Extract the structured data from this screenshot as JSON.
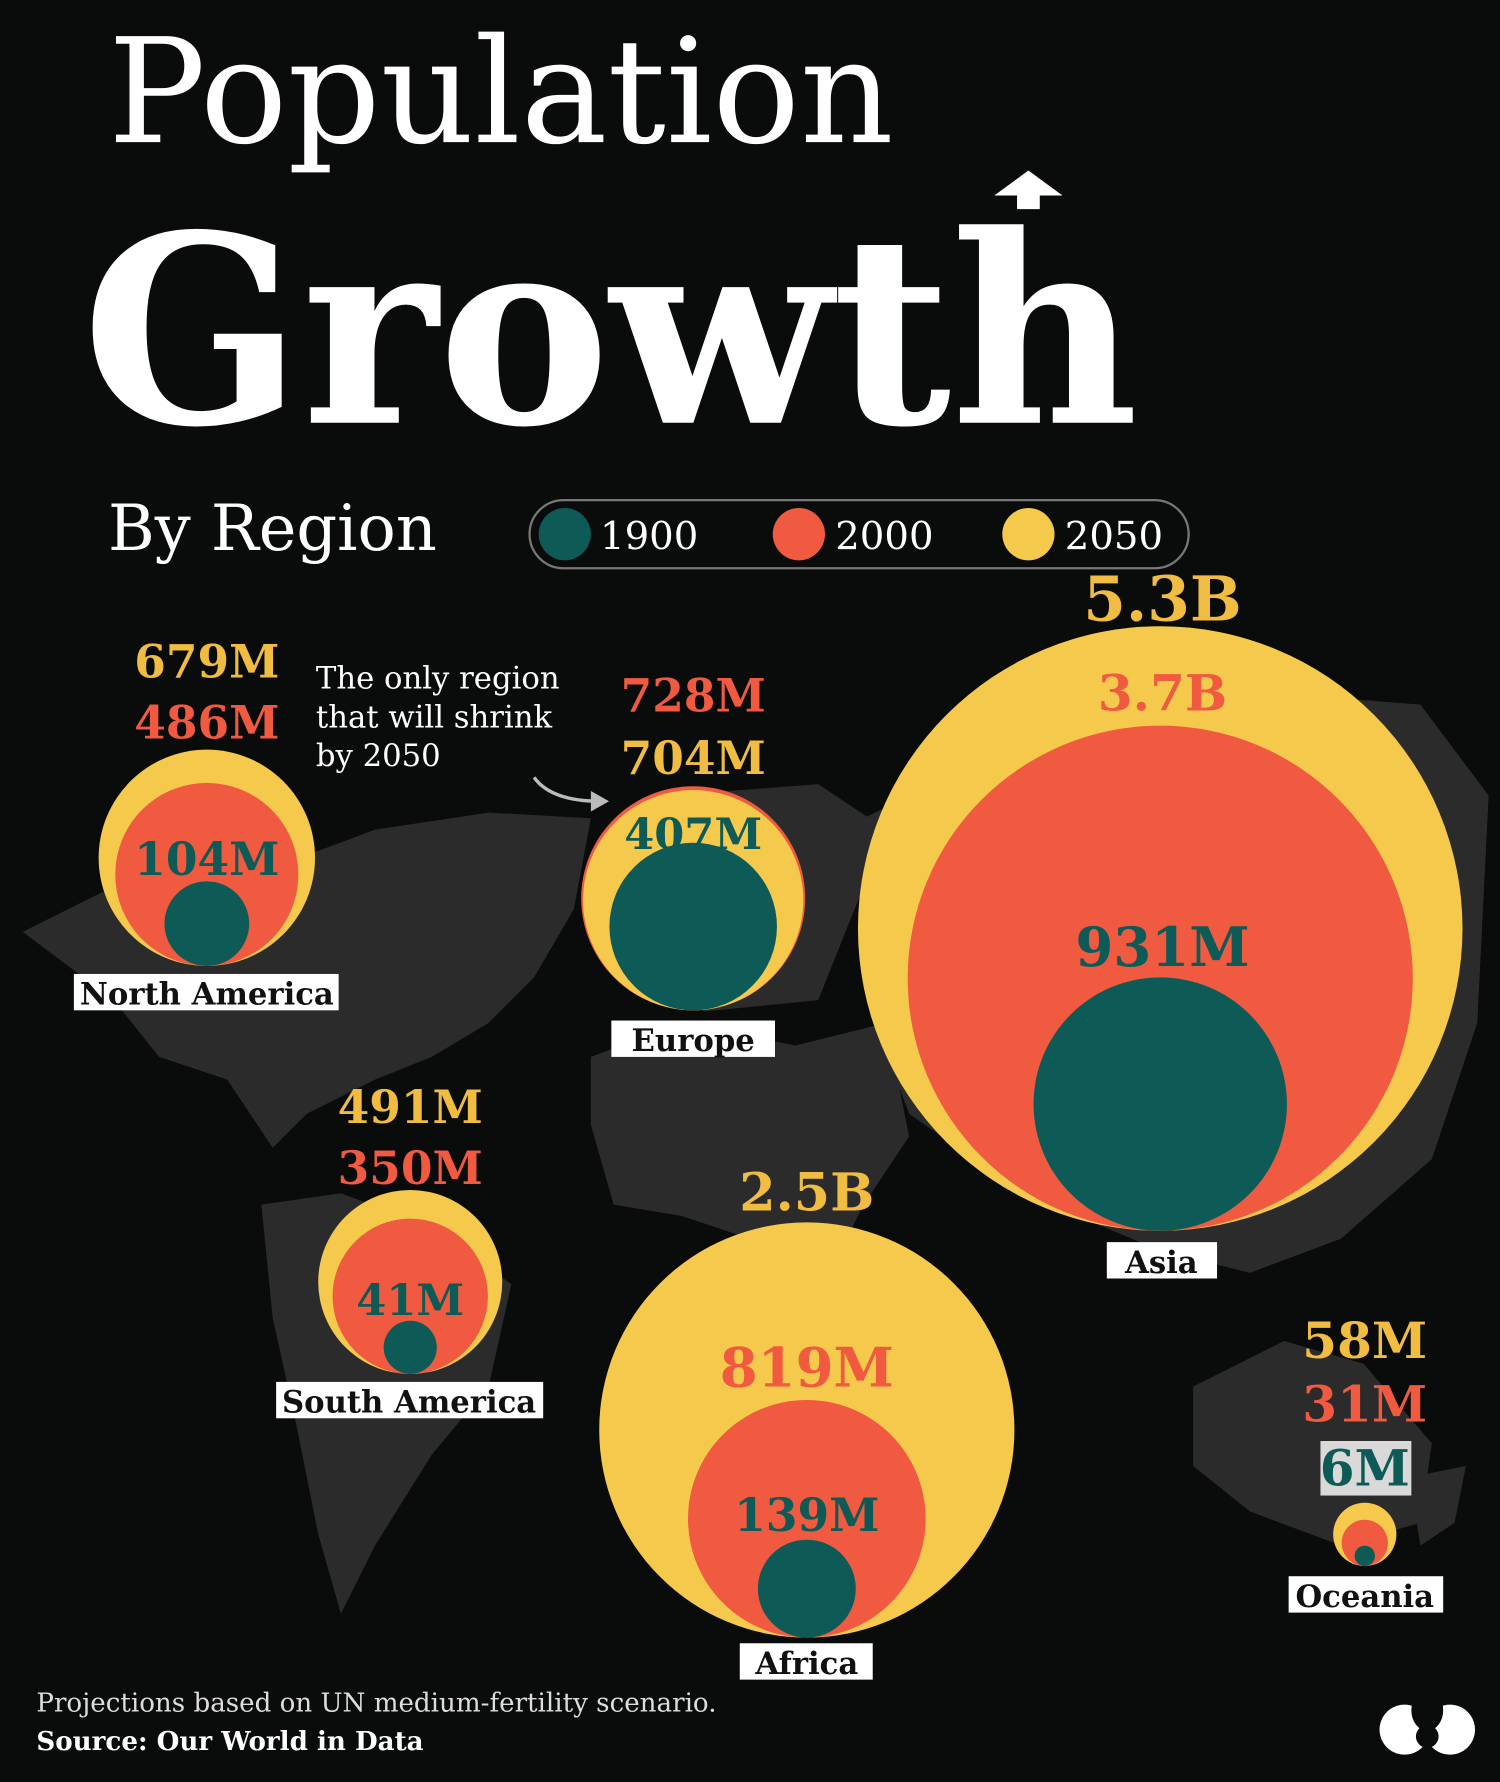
{
  "title": {
    "line1": "Population",
    "line2": "Growth",
    "subtitle": "By Region"
  },
  "legend": [
    {
      "label": "1900",
      "color": "#0d5a56"
    },
    {
      "label": "2000",
      "color": "#ef5a41"
    },
    {
      "label": "2050",
      "color": "#f5c94c"
    }
  ],
  "colors": {
    "y1900": "#0d5a56",
    "y2000": "#ef5a41",
    "y2050": "#f5c94c",
    "text2050": "#f0bd42",
    "background": "#0a0b0b",
    "map": "#2b2b2b"
  },
  "annotation": {
    "lines": [
      "The only region",
      "that will shrink",
      "by 2050"
    ]
  },
  "footer": {
    "note": "Projections based on UN medium-fertility scenario.",
    "source": "Source: Our World in Data"
  },
  "chart_data": {
    "type": "bubble",
    "title": "Population Growth By Region",
    "series": [
      {
        "name": "1900"
      },
      {
        "name": "2000"
      },
      {
        "name": "2050"
      }
    ],
    "unit": "people",
    "regions": [
      {
        "name": "North America",
        "values": {
          "1900": 104000000,
          "2000": 486000000,
          "2050": 679000000
        },
        "labels": {
          "1900": "104M",
          "2000": "486M",
          "2050": "679M"
        }
      },
      {
        "name": "Europe",
        "values": {
          "1900": 407000000,
          "2000": 728000000,
          "2050": 704000000
        },
        "labels": {
          "1900": "407M",
          "2000": "728M",
          "2050": "704M"
        }
      },
      {
        "name": "Asia",
        "values": {
          "1900": 931000000,
          "2000": 3700000000,
          "2050": 5300000000
        },
        "labels": {
          "1900": "931M",
          "2000": "3.7B",
          "2050": "5.3B"
        }
      },
      {
        "name": "South America",
        "values": {
          "1900": 41000000,
          "2000": 350000000,
          "2050": 491000000
        },
        "labels": {
          "1900": "41M",
          "2000": "350M",
          "2050": "491M"
        }
      },
      {
        "name": "Africa",
        "values": {
          "1900": 139000000,
          "2000": 819000000,
          "2050": 2500000000
        },
        "labels": {
          "1900": "139M",
          "2000": "819M",
          "2050": "2.5B"
        }
      },
      {
        "name": "Oceania",
        "values": {
          "1900": 6000000,
          "2000": 31000000,
          "2050": 58000000
        },
        "labels": {
          "1900": "6M",
          "2000": "31M",
          "2050": "58M"
        }
      }
    ]
  }
}
